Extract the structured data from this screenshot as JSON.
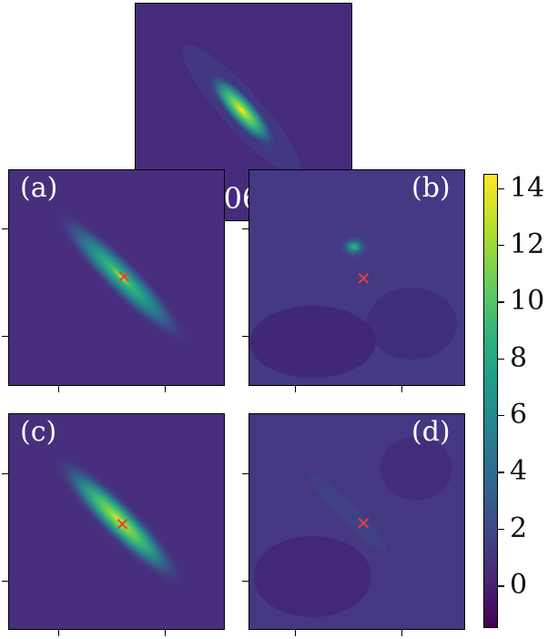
{
  "panels": {
    "top": {
      "filter_label": "F606W"
    },
    "a": {
      "label": "(a)"
    },
    "b": {
      "label": "(b)"
    },
    "c": {
      "label": "(c)"
    },
    "d": {
      "label": "(d)"
    }
  },
  "colorbar": {
    "colormap": "viridis",
    "ticks": [
      "14",
      "12",
      "10",
      "8",
      "6",
      "4",
      "2",
      "0"
    ],
    "min": -1.5,
    "max": 14.5
  },
  "colors": {
    "background": "#440154",
    "source_marker": "#e0413a",
    "label_text": "#ffffff"
  },
  "icons": {
    "source_marker": "x-marker-icon"
  }
}
